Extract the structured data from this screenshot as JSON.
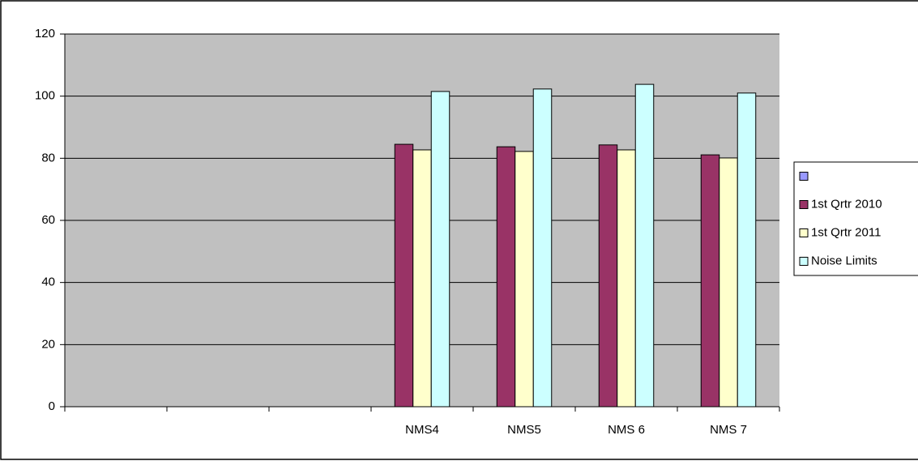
{
  "chart_data": {
    "type": "bar",
    "categories": [
      null,
      null,
      null,
      "NMS4",
      "NMS5",
      "NMS 6",
      "NMS 7"
    ],
    "series": [
      {
        "color": "#9999ff",
        "values": [
          null,
          null,
          null,
          null,
          null,
          null,
          null
        ]
      },
      {
        "name": "1st Qrtr 2010",
        "color": "#993366",
        "values": [
          null,
          null,
          null,
          84.5,
          83.7,
          84.3,
          81.1
        ]
      },
      {
        "name": "1st Qrtr 2011",
        "color": "#ffffcc",
        "values": [
          null,
          null,
          null,
          82.7,
          82.2,
          82.7,
          80.1
        ]
      },
      {
        "name": "Noise Limits",
        "color": "#ccffff",
        "values": [
          null,
          null,
          null,
          101.5,
          102.3,
          103.8,
          101
        ]
      }
    ],
    "ylim": [
      0,
      120
    ],
    "yticks": [
      0,
      20,
      40,
      60,
      80,
      100,
      120
    ],
    "grid": true,
    "plot_background": "#c0c0c0",
    "legend": "right"
  }
}
